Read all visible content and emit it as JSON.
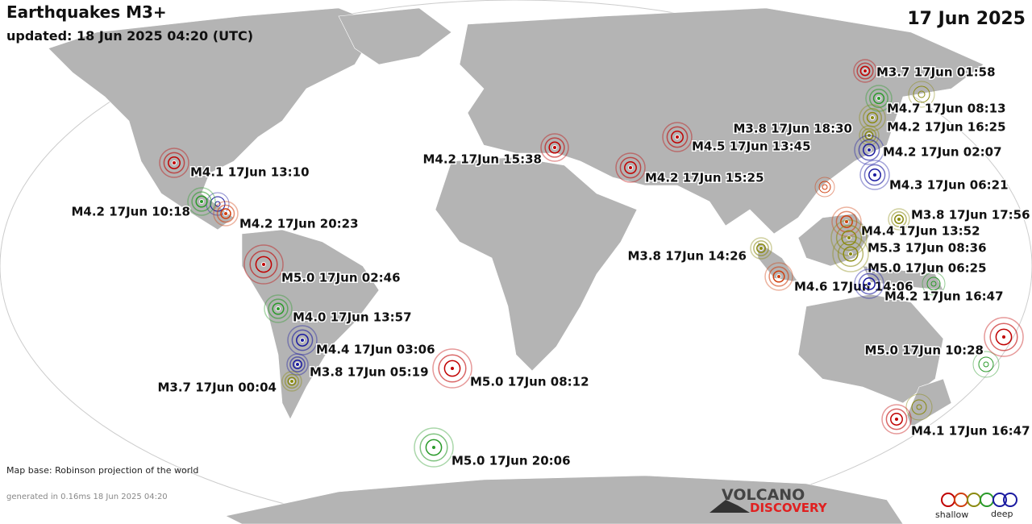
{
  "header": {
    "title": "Earthquakes M3+",
    "updated": "updated: 18 Jun 2025 04:20 (UTC)",
    "date": "17 Jun 2025"
  },
  "quakes": [
    {
      "label": "M3.7 17Jun 01:58",
      "color": "#c00000"
    },
    {
      "label": "M4.7 17Jun 08:13",
      "color": "#2a9a2a"
    },
    {
      "label": "M3.8 17Jun 18:30",
      "color": "#8a8a10"
    },
    {
      "label": "M4.2 17Jun 16:25",
      "color": "#8a8a10"
    },
    {
      "label": "M4.5 17Jun 13:45",
      "color": "#c00000"
    },
    {
      "label": "M4.2 17Jun 02:07",
      "color": "#1a1aa0"
    },
    {
      "label": "M4.2 17Jun 15:38",
      "color": "#c00000"
    },
    {
      "label": "M4.1 17Jun 13:10",
      "color": "#c00000"
    },
    {
      "label": "M4.2 17Jun 15:25",
      "color": "#c00000"
    },
    {
      "label": "M4.3 17Jun 06:21",
      "color": "#1a1aa0"
    },
    {
      "label": "M4.2 17Jun 10:18",
      "color": "#2a9a2a"
    },
    {
      "label": "M4.2 17Jun 20:23",
      "color": "#d04010"
    },
    {
      "label": "M3.8 17Jun 17:56",
      "color": "#8a8a10"
    },
    {
      "label": "M4.4 17Jun 13:52",
      "color": "#d04010"
    },
    {
      "label": "M5.3 17Jun 08:36",
      "color": "#8a8a10"
    },
    {
      "label": "M3.8 17Jun 14:26",
      "color": "#8a8a10"
    },
    {
      "label": "M5.0 17Jun 06:25",
      "color": "#8a8a10"
    },
    {
      "label": "M5.0 17Jun 02:46",
      "color": "#c00000"
    },
    {
      "label": "M4.6 17Jun 14:06",
      "color": "#d04010"
    },
    {
      "label": "M4.2 17Jun 16:47",
      "color": "#1a1aa0"
    },
    {
      "label": "M4.0 17Jun 13:57",
      "color": "#2a9a2a"
    },
    {
      "label": "M5.0 17Jun 10:28",
      "color": "#c00000"
    },
    {
      "label": "M4.4 17Jun 03:06",
      "color": "#1a1aa0"
    },
    {
      "label": "M3.8 17Jun 05:19",
      "color": "#1a1aa0"
    },
    {
      "label": "M3.7 17Jun 00:04",
      "color": "#8a8a10"
    },
    {
      "label": "M5.0 17Jun 08:12",
      "color": "#c00000"
    },
    {
      "label": "M4.1 17Jun 16:47",
      "color": "#c00000"
    },
    {
      "label": "M5.0 17Jun 20:06",
      "color": "#2a9a2a"
    }
  ],
  "footer": {
    "map_base": "Map base: Robinson projection of the world",
    "generated": "generated in 0.16ms 18 Jun 2025 04:20",
    "logo_top": "VOLCANO",
    "logo_bottom": "DISCOVERY",
    "legend_left": "shallow",
    "legend_right": "deep"
  }
}
